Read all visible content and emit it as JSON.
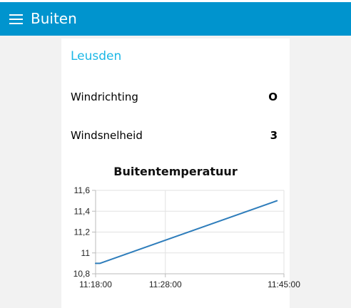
{
  "header": {
    "title": "Buiten",
    "menu_icon": "hamburger-menu-icon"
  },
  "group": {
    "title": "Leusden"
  },
  "rows": [
    {
      "label": "Windrichting",
      "value": "O"
    },
    {
      "label": "Windsnelheid",
      "value": "3"
    }
  ],
  "colors": {
    "header": "#0094ce",
    "group_title": "#1bb7e6",
    "line": "#2e7dbb"
  },
  "chart_data": {
    "type": "line",
    "title": "Buitentemperatuur",
    "xlabel": "",
    "ylabel": "",
    "x_ticks": [
      "11:18:00",
      "11:28:00",
      "11:45:00"
    ],
    "y_ticks": [
      "10,8",
      "11",
      "11,2",
      "11,4",
      "11,6"
    ],
    "ylim": [
      10.8,
      11.6
    ],
    "xlim": [
      "11:18:00",
      "11:45:00"
    ],
    "grid": true,
    "series": [
      {
        "x": [
          "11:18:00",
          "11:18:36",
          "11:44:00"
        ],
        "y": [
          10.9,
          10.9,
          11.5
        ]
      }
    ]
  }
}
